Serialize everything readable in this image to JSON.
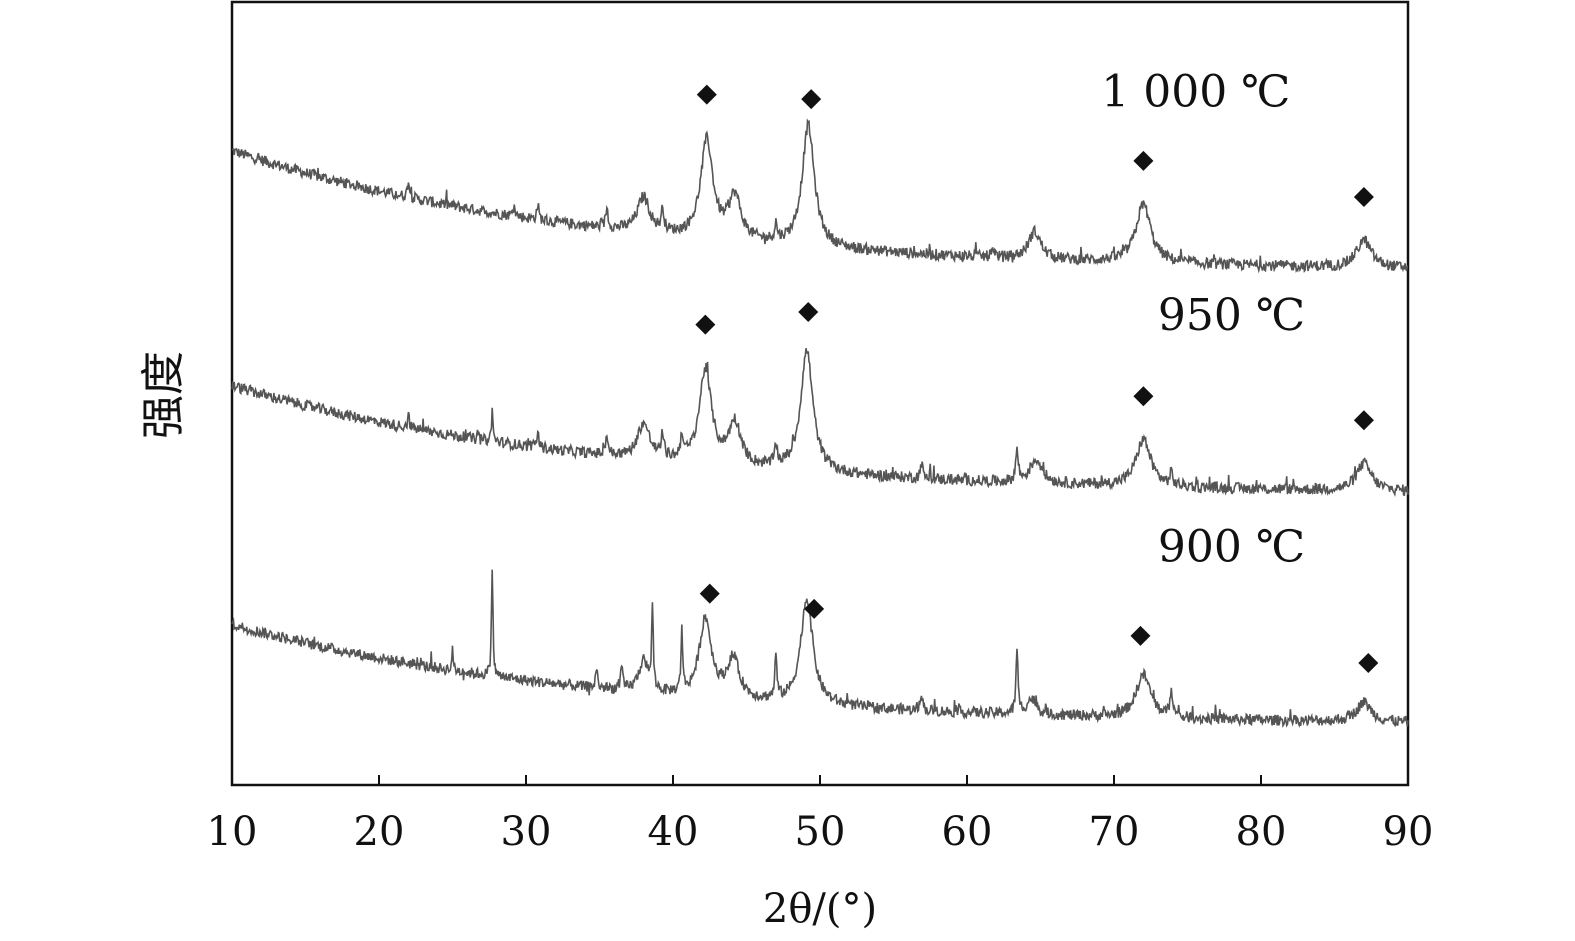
{
  "chart_data": {
    "type": "line",
    "title": "",
    "xlabel": "2θ/(°)",
    "ylabel": "强度",
    "xlim": [
      10,
      90
    ],
    "xticks": [
      10,
      20,
      30,
      40,
      50,
      60,
      70,
      80,
      90
    ],
    "ylim": [
      0,
      10
    ],
    "yticks_shown": false,
    "grid": false,
    "legend": "none",
    "marker_symbol": "◆",
    "line_color": "#555555",
    "marker_color": "#111111",
    "series": [
      {
        "name": "1 000 ℃",
        "baseline_start": 8.1,
        "baseline_end": 6.6,
        "peaks": [
          {
            "x": 22.0,
            "h": 0.22,
            "w": 0.08
          },
          {
            "x": 29.2,
            "h": 0.15,
            "w": 0.08
          },
          {
            "x": 30.8,
            "h": 0.2,
            "w": 0.08
          },
          {
            "x": 35.5,
            "h": 0.25,
            "w": 0.1
          },
          {
            "x": 38.0,
            "h": 0.45,
            "w": 0.5
          },
          {
            "x": 39.3,
            "h": 0.28,
            "w": 0.1
          },
          {
            "x": 42.3,
            "h": 1.25,
            "w": 0.5
          },
          {
            "x": 44.2,
            "h": 0.55,
            "w": 0.5
          },
          {
            "x": 47.0,
            "h": 0.2,
            "w": 0.1
          },
          {
            "x": 49.2,
            "h": 1.55,
            "w": 0.5
          },
          {
            "x": 61.8,
            "h": 0.12,
            "w": 0.1
          },
          {
            "x": 64.6,
            "h": 0.35,
            "w": 0.5
          },
          {
            "x": 72.0,
            "h": 0.75,
            "w": 0.6
          },
          {
            "x": 87.0,
            "h": 0.35,
            "w": 0.6
          }
        ],
        "markers_x": [
          42.3,
          49.4,
          72.0,
          87.0
        ]
      },
      {
        "name": "950 ℃",
        "baseline_start": 5.1,
        "baseline_end": 3.75,
        "peaks": [
          {
            "x": 22.0,
            "h": 0.15,
            "w": 0.08
          },
          {
            "x": 27.7,
            "h": 0.4,
            "w": 0.06
          },
          {
            "x": 30.8,
            "h": 0.2,
            "w": 0.08
          },
          {
            "x": 35.5,
            "h": 0.25,
            "w": 0.1
          },
          {
            "x": 38.0,
            "h": 0.45,
            "w": 0.5
          },
          {
            "x": 39.3,
            "h": 0.3,
            "w": 0.1
          },
          {
            "x": 40.6,
            "h": 0.3,
            "w": 0.1
          },
          {
            "x": 42.2,
            "h": 1.2,
            "w": 0.5
          },
          {
            "x": 44.2,
            "h": 0.55,
            "w": 0.5
          },
          {
            "x": 47.0,
            "h": 0.28,
            "w": 0.1
          },
          {
            "x": 49.1,
            "h": 1.55,
            "w": 0.5
          },
          {
            "x": 56.9,
            "h": 0.2,
            "w": 0.1
          },
          {
            "x": 63.4,
            "h": 0.4,
            "w": 0.1
          },
          {
            "x": 64.7,
            "h": 0.3,
            "w": 0.5
          },
          {
            "x": 72.0,
            "h": 0.6,
            "w": 0.6
          },
          {
            "x": 73.9,
            "h": 0.15,
            "w": 0.1
          },
          {
            "x": 87.0,
            "h": 0.35,
            "w": 0.6
          }
        ],
        "markers_x": [
          42.2,
          49.2,
          72.0,
          87.0
        ]
      },
      {
        "name": "900 ℃",
        "baseline_start": 2.05,
        "baseline_end": 0.8,
        "peaks": [
          {
            "x": 25.0,
            "h": 0.25,
            "w": 0.06
          },
          {
            "x": 27.7,
            "h": 1.4,
            "w": 0.06
          },
          {
            "x": 34.8,
            "h": 0.25,
            "w": 0.08
          },
          {
            "x": 36.5,
            "h": 0.28,
            "w": 0.08
          },
          {
            "x": 38.0,
            "h": 0.4,
            "w": 0.4
          },
          {
            "x": 38.6,
            "h": 1.05,
            "w": 0.06
          },
          {
            "x": 40.6,
            "h": 0.85,
            "w": 0.06
          },
          {
            "x": 42.2,
            "h": 1.0,
            "w": 0.5
          },
          {
            "x": 44.1,
            "h": 0.5,
            "w": 0.5
          },
          {
            "x": 47.0,
            "h": 0.55,
            "w": 0.08
          },
          {
            "x": 49.1,
            "h": 1.35,
            "w": 0.5
          },
          {
            "x": 56.9,
            "h": 0.25,
            "w": 0.08
          },
          {
            "x": 63.4,
            "h": 0.8,
            "w": 0.08
          },
          {
            "x": 64.4,
            "h": 0.2,
            "w": 0.4
          },
          {
            "x": 72.0,
            "h": 0.55,
            "w": 0.6
          },
          {
            "x": 73.9,
            "h": 0.35,
            "w": 0.1
          },
          {
            "x": 87.0,
            "h": 0.25,
            "w": 0.6
          }
        ],
        "markers_x": [
          42.5,
          49.6,
          71.8,
          87.3
        ]
      }
    ]
  }
}
